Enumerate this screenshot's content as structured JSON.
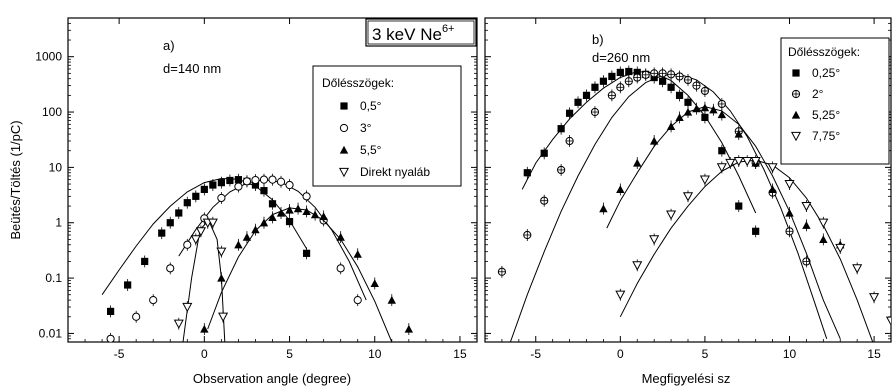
{
  "chart_data": [
    {
      "type": "scatter",
      "panel_label": "a)",
      "thickness_label": "d=140 nm",
      "xlabel": "Observation angle (degree)",
      "ylabel": "Beütés/Töltés (1/pC)",
      "xlim": [
        -8,
        16
      ],
      "ylim": [
        0.007,
        5000
      ],
      "yscale": "log",
      "x_ticks": [
        -5,
        0,
        5,
        10,
        15
      ],
      "y_ticks": [
        0.01,
        0.1,
        1,
        10,
        100,
        1000
      ],
      "y_tick_labels": [
        "0.01",
        "0.1",
        "1",
        "10",
        "100",
        "1000"
      ],
      "legend_title": "Dőlésszögek:",
      "legend_position": "upper-right",
      "series": [
        {
          "name": "0,5°",
          "marker": "square-filled",
          "points": [
            [
              -5.5,
              0.025
            ],
            [
              -4.5,
              0.075
            ],
            [
              -3.5,
              0.2
            ],
            [
              -2.5,
              0.65
            ],
            [
              -2,
              1.0
            ],
            [
              -1.5,
              1.5
            ],
            [
              -1,
              2.3
            ],
            [
              -0.5,
              3.0
            ],
            [
              0,
              4.0
            ],
            [
              0.5,
              4.8
            ],
            [
              1,
              5.3
            ],
            [
              1.5,
              5.8
            ],
            [
              2,
              6.0
            ],
            [
              2.5,
              5.6
            ],
            [
              3,
              4.8
            ],
            [
              3.5,
              3.8
            ],
            [
              4,
              2.2
            ],
            [
              5,
              1.05
            ],
            [
              6,
              0.28
            ]
          ],
          "fit": [
            [
              -6,
              0.05
            ],
            [
              -5,
              0.14
            ],
            [
              -4,
              0.38
            ],
            [
              -3,
              0.95
            ],
            [
              -2,
              2.0
            ],
            [
              -1,
              3.6
            ],
            [
              0,
              5.3
            ],
            [
              1,
              6.3
            ],
            [
              2,
              6.1
            ],
            [
              3,
              4.6
            ],
            [
              4,
              2.6
            ],
            [
              5,
              1.1
            ],
            [
              6,
              0.34
            ]
          ]
        },
        {
          "name": "3°",
          "marker": "circle-open",
          "points": [
            [
              -5.5,
              0.008
            ],
            [
              -4,
              0.02
            ],
            [
              -3,
              0.04
            ],
            [
              -2,
              0.15
            ],
            [
              -1,
              0.4
            ],
            [
              0,
              1.2
            ],
            [
              1,
              2.8
            ],
            [
              2,
              4.5
            ],
            [
              2.5,
              5.6
            ],
            [
              3,
              5.9
            ],
            [
              3.5,
              6.0
            ],
            [
              4,
              6.0
            ],
            [
              4.5,
              5.5
            ],
            [
              5,
              4.8
            ],
            [
              6,
              3.0
            ],
            [
              7,
              1.1
            ],
            [
              8,
              0.15
            ],
            [
              9,
              0.04
            ]
          ],
          "fit": [
            [
              -1.5,
              0.25
            ],
            [
              -0.5,
              0.75
            ],
            [
              0.5,
              1.9
            ],
            [
              1.5,
              3.6
            ],
            [
              2.5,
              5.2
            ],
            [
              3.5,
              6.0
            ],
            [
              4.5,
              5.4
            ],
            [
              5.5,
              3.7
            ],
            [
              6.5,
              1.9
            ],
            [
              7.5,
              0.72
            ],
            [
              8.5,
              0.2
            ],
            [
              9.5,
              0.04
            ]
          ]
        },
        {
          "name": "5,5°",
          "marker": "triangle-filled",
          "points": [
            [
              0,
              0.012
            ],
            [
              1,
              0.1
            ],
            [
              2,
              0.4
            ],
            [
              2.5,
              0.55
            ],
            [
              3,
              0.75
            ],
            [
              3.5,
              1.0
            ],
            [
              4,
              1.25
            ],
            [
              4.5,
              1.5
            ],
            [
              5,
              1.7
            ],
            [
              5.5,
              1.8
            ],
            [
              6,
              1.6
            ],
            [
              6.5,
              1.4
            ],
            [
              7,
              1.3
            ],
            [
              8,
              0.55
            ],
            [
              9,
              0.27
            ],
            [
              10,
              0.08
            ],
            [
              11,
              0.04
            ],
            [
              12,
              0.012
            ]
          ],
          "fit": [
            [
              0.2,
              0.012
            ],
            [
              1,
              0.055
            ],
            [
              2,
              0.24
            ],
            [
              3,
              0.72
            ],
            [
              4,
              1.4
            ],
            [
              5,
              1.85
            ],
            [
              6,
              1.7
            ],
            [
              7,
              1.1
            ],
            [
              8,
              0.5
            ],
            [
              9,
              0.16
            ],
            [
              10,
              0.038
            ],
            [
              11,
              0.007
            ]
          ]
        },
        {
          "name": "Direkt nyaláb",
          "marker": "triangle-down-open",
          "points": [
            [
              -1.5,
              0.015
            ],
            [
              -1,
              0.03
            ],
            [
              -0.5,
              0.5
            ],
            [
              -0.2,
              0.7
            ],
            [
              0.2,
              1.0
            ],
            [
              0.5,
              1.0
            ],
            [
              1,
              0.3
            ],
            [
              1.1,
              0.02
            ]
          ],
          "fit": [
            [
              -1.25,
              0.007
            ],
            [
              -0.75,
              0.1
            ],
            [
              -0.25,
              0.75
            ],
            [
              0.25,
              1.1
            ],
            [
              0.75,
              0.5
            ],
            [
              1.0,
              0.1
            ],
            [
              1.2,
              0.007
            ]
          ]
        }
      ]
    },
    {
      "type": "scatter",
      "panel_label": "b)",
      "thickness_label": "d=260 nm",
      "xlabel": "Megfigyelési sz",
      "xlim": [
        -8,
        16
      ],
      "ylim": [
        0.007,
        5000
      ],
      "yscale": "log",
      "x_ticks": [
        -5,
        0,
        5,
        10,
        15
      ],
      "legend_title": "Dőlésszögek:",
      "legend_position": "upper-right",
      "series": [
        {
          "name": "0,25°",
          "marker": "square-filled",
          "points": [
            [
              -5.5,
              8
            ],
            [
              -4.5,
              18
            ],
            [
              -3.5,
              50
            ],
            [
              -3,
              95
            ],
            [
              -2.5,
              150
            ],
            [
              -2,
              200
            ],
            [
              -1.5,
              280
            ],
            [
              -1,
              360
            ],
            [
              -0.5,
              440
            ],
            [
              0,
              520
            ],
            [
              0.5,
              540
            ],
            [
              1,
              520
            ],
            [
              1.5,
              480
            ],
            [
              2,
              420
            ],
            [
              2.5,
              360
            ],
            [
              3,
              280
            ],
            [
              3.5,
              200
            ],
            [
              4,
              150
            ],
            [
              5,
              80
            ],
            [
              6,
              20
            ],
            [
              7,
              2.0
            ],
            [
              8,
              0.7
            ]
          ],
          "fit": [
            [
              -5.8,
              4
            ],
            [
              -5,
              12
            ],
            [
              -4,
              32
            ],
            [
              -3,
              75
            ],
            [
              -2,
              150
            ],
            [
              -1,
              270
            ],
            [
              0,
              420
            ],
            [
              1,
              540
            ],
            [
              2,
              510
            ],
            [
              3,
              370
            ],
            [
              4,
              200
            ],
            [
              5,
              85
            ],
            [
              6,
              28
            ],
            [
              7,
              7
            ],
            [
              8,
              1.5
            ]
          ]
        },
        {
          "name": "2°",
          "marker": "circle-crossed",
          "points": [
            [
              -7,
              0.13
            ],
            [
              -5.5,
              0.6
            ],
            [
              -4.5,
              2.5
            ],
            [
              -3.5,
              9
            ],
            [
              -3,
              30
            ],
            [
              -1.5,
              100
            ],
            [
              -0.5,
              200
            ],
            [
              0,
              280
            ],
            [
              0.5,
              360
            ],
            [
              1,
              420
            ],
            [
              1.5,
              470
            ],
            [
              2,
              500
            ],
            [
              2.5,
              500
            ],
            [
              3,
              480
            ],
            [
              3.5,
              440
            ],
            [
              4,
              380
            ],
            [
              4.5,
              300
            ],
            [
              5,
              240
            ],
            [
              6,
              140
            ],
            [
              7,
              45
            ],
            [
              8,
              12
            ],
            [
              9,
              3.5
            ],
            [
              10,
              0.7
            ],
            [
              11,
              0.2
            ]
          ],
          "fit": [
            [
              -6.5,
              0.007
            ],
            [
              -5.5,
              0.05
            ],
            [
              -4.5,
              0.3
            ],
            [
              -3.5,
              1.6
            ],
            [
              -2.5,
              7
            ],
            [
              -1.5,
              26
            ],
            [
              -0.5,
              80
            ],
            [
              0.5,
              190
            ],
            [
              1.5,
              340
            ],
            [
              2.5,
              460
            ],
            [
              3.5,
              480
            ],
            [
              4.5,
              380
            ],
            [
              5.5,
              230
            ],
            [
              6.5,
              105
            ],
            [
              7.5,
              36
            ],
            [
              8.5,
              9
            ],
            [
              9.5,
              1.8
            ],
            [
              10.5,
              0.28
            ],
            [
              11.5,
              0.035
            ],
            [
              12.2,
              0.008
            ]
          ]
        },
        {
          "name": "5,25°",
          "marker": "triangle-filled",
          "points": [
            [
              -1,
              1.8
            ],
            [
              0,
              4
            ],
            [
              1,
              12
            ],
            [
              2,
              30
            ],
            [
              3,
              55
            ],
            [
              3.5,
              80
            ],
            [
              4,
              100
            ],
            [
              4.5,
              115
            ],
            [
              5,
              120
            ],
            [
              5.5,
              110
            ],
            [
              6,
              90
            ],
            [
              7,
              40
            ],
            [
              8,
              12
            ],
            [
              9,
              4
            ],
            [
              10,
              1.5
            ],
            [
              11,
              0.9
            ],
            [
              12,
              0.5
            ],
            [
              13,
              0.4
            ]
          ],
          "fit": [
            [
              -0.8,
              0.8
            ],
            [
              0,
              2.5
            ],
            [
              1,
              8
            ],
            [
              2,
              24
            ],
            [
              3,
              55
            ],
            [
              4,
              100
            ],
            [
              5,
              125
            ],
            [
              6,
              105
            ],
            [
              7,
              60
            ],
            [
              8,
              24
            ],
            [
              9,
              7
            ],
            [
              10,
              1.6
            ],
            [
              11,
              0.28
            ],
            [
              12,
              0.04
            ],
            [
              13,
              0.008
            ]
          ]
        },
        {
          "name": "7,75°",
          "marker": "triangle-down-open",
          "points": [
            [
              0,
              0.05
            ],
            [
              1,
              0.17
            ],
            [
              2,
              0.5
            ],
            [
              3,
              1.4
            ],
            [
              4,
              3
            ],
            [
              5,
              6
            ],
            [
              6,
              10
            ],
            [
              6.5,
              12
            ],
            [
              7,
              13
            ],
            [
              7.5,
              13
            ],
            [
              8,
              13
            ],
            [
              9,
              10
            ],
            [
              10,
              5
            ],
            [
              11,
              2
            ],
            [
              12,
              1
            ],
            [
              13,
              0.35
            ],
            [
              14,
              0.15
            ],
            [
              15,
              0.045
            ],
            [
              16,
              0.017
            ]
          ],
          "fit": [
            [
              0,
              0.02
            ],
            [
              1,
              0.08
            ],
            [
              2,
              0.27
            ],
            [
              3,
              0.8
            ],
            [
              4,
              2
            ],
            [
              5,
              4.5
            ],
            [
              6,
              8.5
            ],
            [
              7,
              12.5
            ],
            [
              8,
              13.5
            ],
            [
              9,
              11
            ],
            [
              10,
              6.5
            ],
            [
              11,
              2.8
            ],
            [
              12,
              0.9
            ],
            [
              13,
              0.22
            ],
            [
              14,
              0.04
            ],
            [
              15,
              0.006
            ]
          ]
        }
      ]
    }
  ],
  "energy_label": "3 keV Ne",
  "energy_charge": "6+"
}
